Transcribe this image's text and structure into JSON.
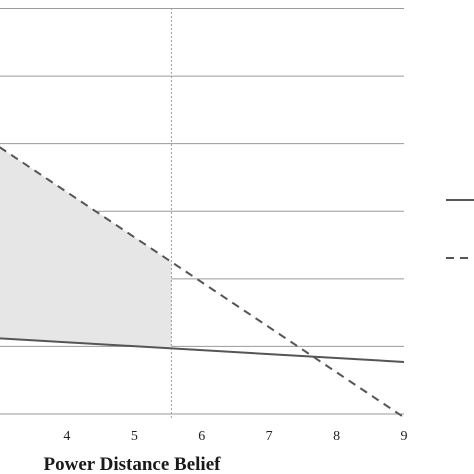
{
  "chart_data": {
    "type": "line",
    "xlabel": "Power Distance Belief",
    "x_ticks": [
      4,
      5,
      6,
      7,
      8,
      9
    ],
    "xlim": [
      3,
      9
    ],
    "ylim": [
      0,
      6
    ],
    "y_gridlines": [
      0,
      1,
      2,
      3,
      4,
      5,
      6
    ],
    "grid": true,
    "reference_line_x": 5.55,
    "shaded_region": {
      "from_x": 3,
      "to_x": 5.55,
      "between": "dashed series above solid series"
    },
    "legend_placement": "right",
    "series": [
      {
        "style": "solid",
        "color": "#555555",
        "x": [
          3,
          9
        ],
        "y": [
          1.12,
          0.77
        ]
      },
      {
        "style": "dashed",
        "color": "#555555",
        "x": [
          3,
          9
        ],
        "y": [
          3.95,
          -0.05
        ]
      }
    ],
    "colors": {
      "gridline": "#9a9a9a",
      "reference_line": "#a0a0a0",
      "shade": "#e6e6e6"
    }
  }
}
